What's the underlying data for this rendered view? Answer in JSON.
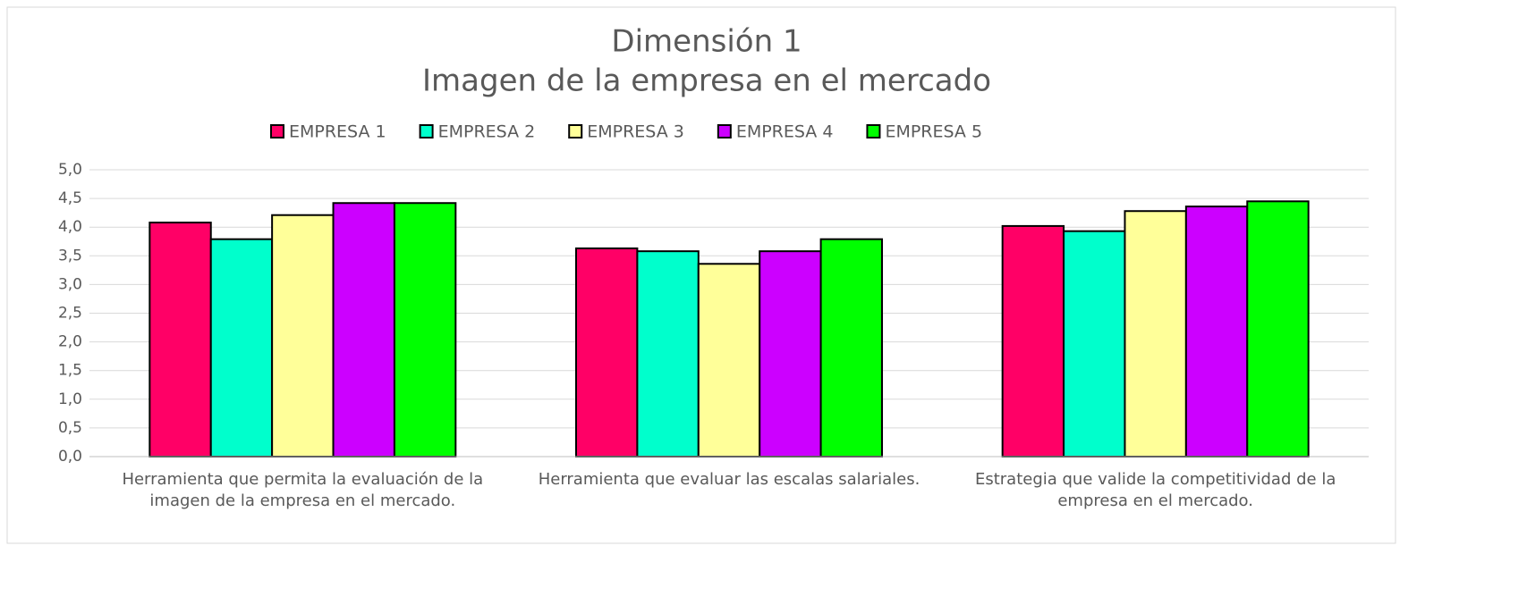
{
  "chart_data": {
    "type": "bar",
    "title": [
      "Dimensión 1",
      "Imagen de la empresa en el mercado"
    ],
    "categories": [
      "Herramienta que permita la evaluación de la imagen de la empresa en el mercado.",
      "Herramienta que evaluar las escalas salariales.",
      "Estrategia que valide la competitividad de la empresa en el mercado."
    ],
    "series": [
      {
        "name": "EMPRESA 1",
        "color": "#ff0066",
        "values": [
          4.08,
          3.63,
          4.02
        ]
      },
      {
        "name": "EMPRESA 2",
        "color": "#00ffcc",
        "values": [
          3.79,
          3.58,
          3.93
        ]
      },
      {
        "name": "EMPRESA 3",
        "color": "#ffff99",
        "values": [
          4.21,
          3.36,
          4.28
        ]
      },
      {
        "name": "EMPRESA 4",
        "color": "#cc00ff",
        "values": [
          4.42,
          3.58,
          4.36
        ]
      },
      {
        "name": "EMPRESA 5",
        "color": "#00ff00",
        "values": [
          4.42,
          3.79,
          4.45
        ]
      }
    ],
    "ylim": [
      0,
      5
    ],
    "yticks": [
      {
        "value": 0,
        "label": "0,0"
      },
      {
        "value": 0.5,
        "label": "0,5"
      },
      {
        "value": 1,
        "label": "1,0"
      },
      {
        "value": 1.5,
        "label": "1,5"
      },
      {
        "value": 2,
        "label": "2,0"
      },
      {
        "value": 2.5,
        "label": "2,5"
      },
      {
        "value": 3,
        "label": "3,0"
      },
      {
        "value": 3.5,
        "label": "3,5"
      },
      {
        "value": 4,
        "label": "4,0"
      },
      {
        "value": 4.5,
        "label": "4,5"
      },
      {
        "value": 5,
        "label": "5,0"
      }
    ],
    "grid": true,
    "legend": "top"
  }
}
